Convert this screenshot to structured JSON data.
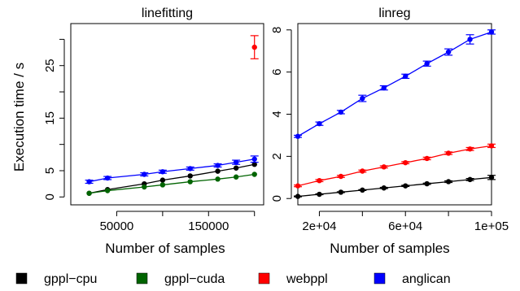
{
  "figure": {
    "ylabel": "Execution time / s",
    "xlabel": "Number of samples"
  },
  "legend": [
    {
      "name": "gppl−cpu",
      "color": "#000000"
    },
    {
      "name": "gppl−cuda",
      "color": "#006400"
    },
    {
      "name": "webppl",
      "color": "#ff0000"
    },
    {
      "name": "anglican",
      "color": "#0000ff"
    }
  ],
  "chart_data": [
    {
      "type": "line",
      "title": "linefitting",
      "xlabel": "Number of samples",
      "ylabel": "Execution time / s",
      "xlim": [
        0,
        210000
      ],
      "ylim": [
        -1.5,
        33
      ],
      "xticks": [
        50000,
        100000,
        150000,
        200000
      ],
      "xtick_labels": [
        "50000",
        "",
        "150000",
        ""
      ],
      "yticks": [
        0,
        5,
        10,
        15,
        20,
        25,
        30
      ],
      "ytick_labels": [
        "0",
        "5",
        "",
        "15",
        "",
        "25",
        ""
      ],
      "grid": false,
      "series": [
        {
          "name": "gppl−cpu",
          "color": "#000000",
          "x": [
            20000,
            40000,
            80000,
            100000,
            130000,
            160000,
            180000,
            200000
          ],
          "y": [
            0.7,
            1.4,
            2.5,
            3.2,
            4.0,
            4.9,
            5.5,
            6.2
          ]
        },
        {
          "name": "gppl−cuda",
          "color": "#006400",
          "x": [
            20000,
            40000,
            80000,
            100000,
            130000,
            160000,
            180000,
            200000
          ],
          "y": [
            0.7,
            1.2,
            1.9,
            2.3,
            2.9,
            3.4,
            3.8,
            4.3
          ]
        },
        {
          "name": "webppl",
          "color": "#ff0000",
          "x": [
            200000
          ],
          "y": [
            28.5
          ],
          "err": [
            2.2
          ]
        },
        {
          "name": "anglican",
          "color": "#0000ff",
          "x": [
            20000,
            40000,
            80000,
            100000,
            130000,
            160000,
            180000,
            200000
          ],
          "y": [
            2.9,
            3.6,
            4.3,
            4.8,
            5.4,
            6.0,
            6.6,
            7.2
          ],
          "err": [
            0.3,
            0.3,
            0.3,
            0.3,
            0.3,
            0.3,
            0.4,
            0.6
          ]
        }
      ]
    },
    {
      "type": "line",
      "title": "linreg",
      "xlabel": "Number of samples",
      "ylabel": "",
      "xlim": [
        10000,
        100000
      ],
      "ylim": [
        -0.3,
        8.3
      ],
      "xticks": [
        20000,
        40000,
        60000,
        80000,
        100000
      ],
      "xtick_labels": [
        "2e+04",
        "",
        "6e+04",
        "",
        "1e+05"
      ],
      "yticks": [
        0,
        2,
        4,
        6,
        8
      ],
      "ytick_labels": [
        "0",
        "2",
        "4",
        "6",
        "8"
      ],
      "grid": false,
      "series": [
        {
          "name": "gppl−cpu",
          "color": "#000000",
          "x": [
            10000,
            20000,
            30000,
            40000,
            50000,
            60000,
            70000,
            80000,
            90000,
            100000
          ],
          "y": [
            0.1,
            0.2,
            0.3,
            0.4,
            0.5,
            0.6,
            0.7,
            0.8,
            0.9,
            1.0
          ],
          "err": [
            0.02,
            0.02,
            0.02,
            0.02,
            0.03,
            0.03,
            0.03,
            0.04,
            0.05,
            0.1
          ]
        },
        {
          "name": "gppl−cuda",
          "color": "#006400",
          "x": [],
          "y": []
        },
        {
          "name": "webppl",
          "color": "#ff0000",
          "x": [
            10000,
            20000,
            30000,
            40000,
            50000,
            60000,
            70000,
            80000,
            90000,
            100000
          ],
          "y": [
            0.6,
            0.85,
            1.05,
            1.3,
            1.5,
            1.7,
            1.9,
            2.15,
            2.35,
            2.5
          ],
          "err": [
            0.04,
            0.05,
            0.05,
            0.05,
            0.05,
            0.05,
            0.06,
            0.06,
            0.07,
            0.08
          ]
        },
        {
          "name": "anglican",
          "color": "#0000ff",
          "x": [
            10000,
            20000,
            30000,
            40000,
            50000,
            60000,
            70000,
            80000,
            90000,
            100000
          ],
          "y": [
            2.95,
            3.55,
            4.1,
            4.75,
            5.25,
            5.8,
            6.4,
            6.95,
            7.55,
            7.9
          ],
          "err": [
            0.05,
            0.08,
            0.08,
            0.15,
            0.1,
            0.1,
            0.12,
            0.15,
            0.22,
            0.1
          ]
        }
      ]
    }
  ]
}
